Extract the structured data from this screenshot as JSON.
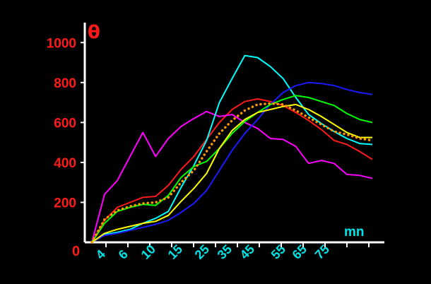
{
  "chart_data": {
    "type": "line",
    "ylabel": "θ",
    "xlabel": "mn",
    "origin_label": "0",
    "x": [
      0,
      1,
      2,
      3,
      4,
      5,
      6,
      8,
      10,
      12,
      15,
      20,
      25,
      30,
      35,
      40,
      45,
      50,
      55,
      60,
      65,
      70,
      75,
      80,
      90
    ],
    "x_tick_labels": [
      "4",
      "6",
      "10",
      "15",
      "25",
      "35",
      "45",
      "55",
      "65",
      "75"
    ],
    "ylim": [
      0,
      1100
    ],
    "y_ticks": [
      200,
      400,
      600,
      800,
      1000
    ],
    "grid": false,
    "series": [
      {
        "color": "#ff1a1a",
        "values": [
          0,
          110,
          175,
          200,
          225,
          230,
          285,
          365,
          430,
          515,
          600,
          665,
          705,
          718,
          705,
          685,
          650,
          610,
          565,
          510,
          490,
          455,
          415,
          null,
          null
        ]
      },
      {
        "color": "#ff00ff",
        "values": [
          0,
          240,
          310,
          430,
          550,
          430,
          520,
          580,
          620,
          655,
          630,
          640,
          600,
          570,
          520,
          515,
          480,
          395,
          410,
          395,
          340,
          335,
          320,
          null,
          null
        ]
      },
      {
        "color": "#00ffff",
        "values": [
          0,
          40,
          50,
          65,
          95,
          120,
          155,
          275,
          385,
          510,
          700,
          820,
          935,
          925,
          880,
          820,
          725,
          640,
          595,
          555,
          520,
          495,
          490,
          null,
          null
        ]
      },
      {
        "color": "#1a1aff",
        "values": [
          0,
          35,
          45,
          60,
          75,
          90,
          110,
          150,
          195,
          260,
          360,
          460,
          545,
          615,
          690,
          750,
          785,
          800,
          795,
          785,
          765,
          750,
          740,
          null,
          null
        ]
      },
      {
        "color": "#00ff00",
        "values": [
          0,
          95,
          155,
          175,
          190,
          185,
          235,
          325,
          380,
          405,
          470,
          545,
          605,
          650,
          690,
          715,
          735,
          725,
          705,
          685,
          645,
          615,
          600,
          null,
          null
        ]
      },
      {
        "color": "#ffff00",
        "values": [
          0,
          45,
          65,
          80,
          95,
          105,
          135,
          205,
          270,
          345,
          470,
          560,
          615,
          650,
          665,
          680,
          690,
          665,
          630,
          590,
          550,
          525,
          525,
          null,
          null
        ]
      },
      {
        "color": "#ff9900",
        "dashed": true,
        "values": [
          0,
          115,
          160,
          180,
          195,
          200,
          225,
          300,
          360,
          455,
          545,
          610,
          660,
          690,
          695,
          690,
          660,
          625,
          590,
          555,
          540,
          520,
          510,
          null,
          null
        ]
      }
    ]
  }
}
